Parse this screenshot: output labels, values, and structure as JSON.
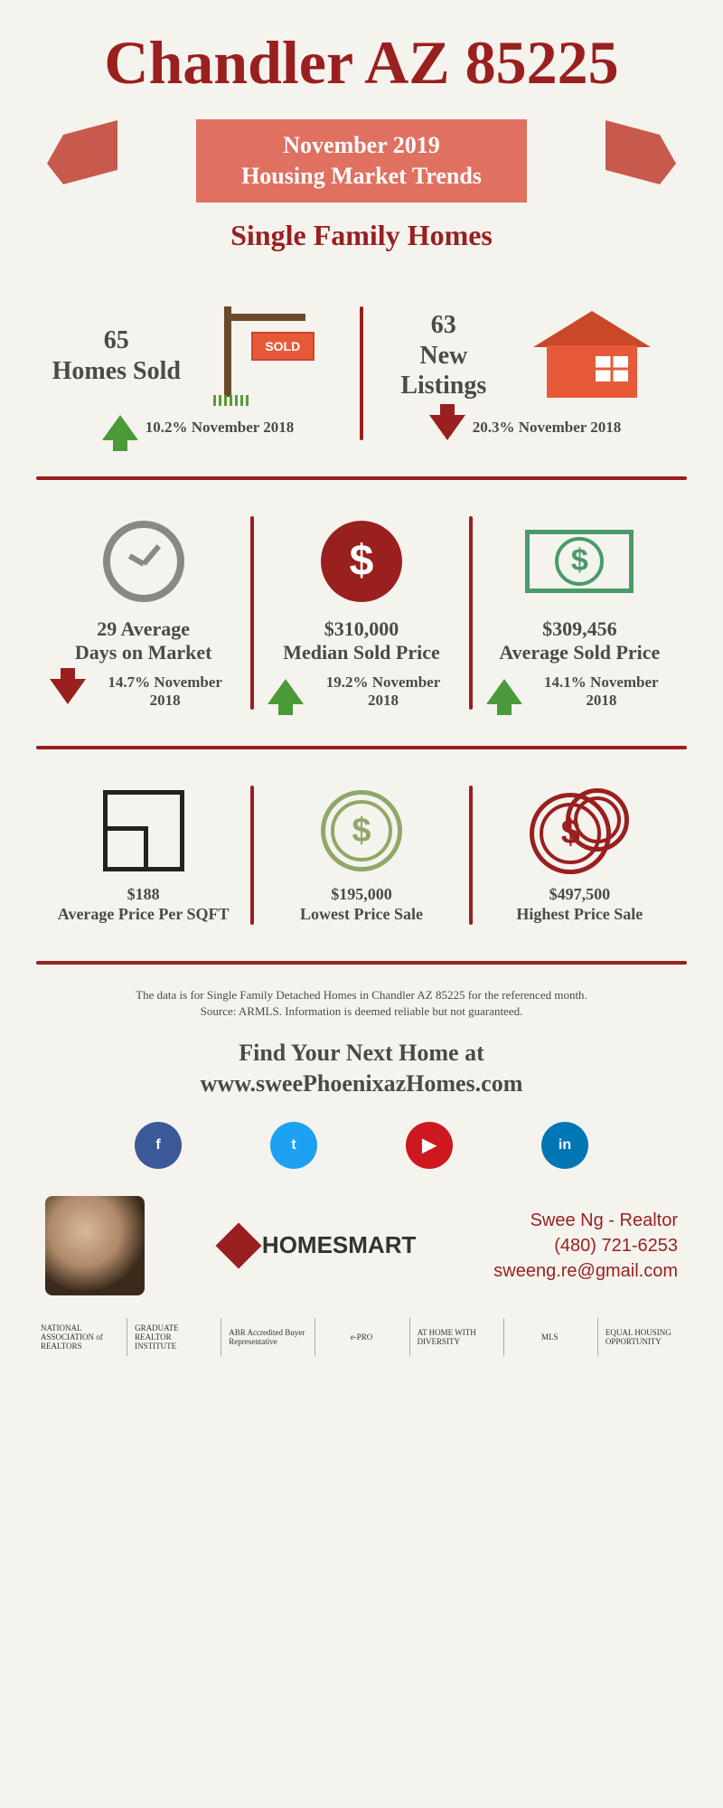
{
  "colors": {
    "primary": "#9a1f1f",
    "accent": "#e07060",
    "green": "#4a9a3a",
    "red_arrow": "#9a1f1f",
    "text": "#4a4a4a",
    "bg": "#f5f3ee"
  },
  "header": {
    "title": "Chandler AZ 85225",
    "ribbon_line1": "November 2019",
    "ribbon_line2": "Housing Market Trends",
    "subtitle": "Single Family Homes"
  },
  "row1": {
    "left": {
      "value": "65",
      "label": "Homes Sold",
      "sold_text": "SOLD",
      "trend_dir": "up",
      "trend_text": "10.2% November 2018"
    },
    "right": {
      "value": "63",
      "label": "New Listings",
      "trend_dir": "down",
      "trend_text": "20.3% November 2018"
    }
  },
  "row2": {
    "c1": {
      "value": "29 Average",
      "label": "Days on Market",
      "trend_dir": "down",
      "trend_text": "14.7% November 2018"
    },
    "c2": {
      "value": "$310,000",
      "label": "Median Sold Price",
      "dollar_bg": "#9a1f1f",
      "trend_dir": "up",
      "trend_text": "19.2% November 2018"
    },
    "c3": {
      "value": "$309,456",
      "label": "Average Sold Price",
      "trend_dir": "up",
      "trend_text": "14.1% November 2018"
    }
  },
  "row3": {
    "c1": {
      "value": "$188",
      "label": "Average Price Per SQFT"
    },
    "c2": {
      "value": "$195,000",
      "label": "Lowest Price Sale",
      "coin_color": "#8fa868"
    },
    "c3": {
      "value": "$497,500",
      "label": "Highest Price Sale",
      "coin_color": "#9a1f1f"
    }
  },
  "footer": {
    "disclaimer_l1": "The data is for Single Family Detached Homes in Chandler AZ 85225 for the referenced month.",
    "disclaimer_l2": "Source: ARMLS. Information is deemed reliable but not guaranteed.",
    "cta_l1": "Find Your Next Home at",
    "cta_l2": "www.sweePhoenixazHomes.com",
    "socials": [
      {
        "name": "facebook",
        "glyph": "f",
        "bg": "#3b5998"
      },
      {
        "name": "twitter",
        "glyph": "t",
        "bg": "#1da1f2"
      },
      {
        "name": "youtube",
        "glyph": "▶",
        "bg": "#cc181e"
      },
      {
        "name": "linkedin",
        "glyph": "in",
        "bg": "#0077b5"
      }
    ],
    "brand": "HOMESMART",
    "contact_name": "Swee Ng - Realtor",
    "contact_phone": "(480) 721-6253",
    "contact_email": "sweeng.re@gmail.com",
    "certs": [
      "NATIONAL ASSOCIATION of REALTORS",
      "GRADUATE REALTOR INSTITUTE",
      "ABR Accredited Buyer Representative",
      "e-PRO",
      "AT HOME WITH DIVERSITY",
      "MLS",
      "EQUAL HOUSING OPPORTUNITY"
    ]
  }
}
